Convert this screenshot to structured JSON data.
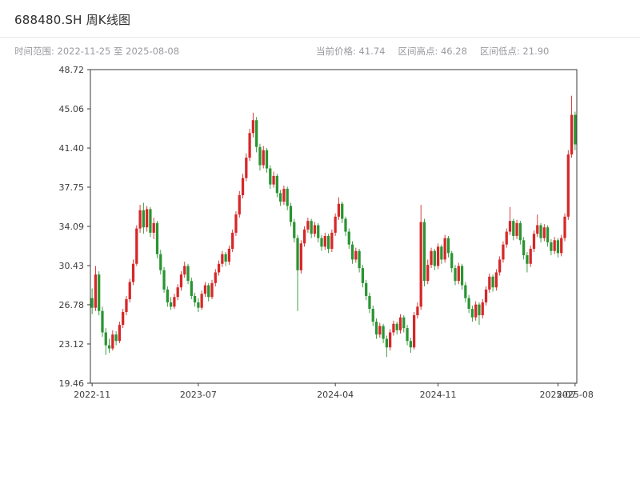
{
  "header": {
    "title": "688480.SH 周K线图",
    "time_range": "时间范围: 2022-11-25 至 2025-08-08",
    "current_price": "当前价格: 41.74",
    "range_high": "区间高点: 46.28",
    "range_low": "区间低点: 21.90"
  },
  "chart_data": {
    "type": "candlestick",
    "title": "688480.SH 周K线图",
    "interval": "weekly",
    "start_date": "2022-11-25",
    "end_date": "2025-08-08",
    "current_price": 41.74,
    "range_high": 46.28,
    "range_low": 21.9,
    "ylim": [
      19.46,
      48.72
    ],
    "y_ticks": [
      19.46,
      23.12,
      26.78,
      30.43,
      34.09,
      37.75,
      41.4,
      45.06,
      48.72
    ],
    "x_ticks": [
      {
        "label": "2022-11",
        "index": 0
      },
      {
        "label": "2023-07",
        "index": 31
      },
      {
        "label": "2024-04",
        "index": 71
      },
      {
        "label": "2024-11",
        "index": 101
      },
      {
        "label": "2025-07",
        "index": 136
      },
      {
        "label": "2025-08",
        "index": 141
      }
    ],
    "up_color": "#d62728",
    "down_color": "#2a9432",
    "grid": false,
    "legend": "none",
    "candles": [
      [
        27.4,
        28.3,
        25.9,
        26.5
      ],
      [
        26.5,
        30.4,
        26.2,
        29.6
      ],
      [
        29.6,
        29.9,
        25.8,
        26.2
      ],
      [
        26.2,
        26.6,
        23.8,
        24.2
      ],
      [
        24.2,
        24.6,
        22.1,
        23.0
      ],
      [
        23.0,
        23.6,
        22.3,
        22.7
      ],
      [
        22.7,
        24.4,
        22.5,
        24.0
      ],
      [
        24.0,
        24.3,
        23.0,
        23.4
      ],
      [
        23.4,
        25.2,
        23.2,
        24.9
      ],
      [
        24.9,
        26.4,
        24.6,
        26.1
      ],
      [
        26.1,
        27.6,
        25.8,
        27.3
      ],
      [
        27.3,
        29.2,
        27.0,
        28.9
      ],
      [
        28.9,
        31.0,
        28.6,
        30.6
      ],
      [
        30.6,
        34.2,
        30.4,
        33.9
      ],
      [
        33.9,
        36.1,
        33.5,
        35.6
      ],
      [
        35.6,
        36.3,
        33.4,
        34.0
      ],
      [
        34.0,
        36.0,
        33.6,
        35.7
      ],
      [
        35.7,
        35.9,
        33.1,
        33.5
      ],
      [
        33.5,
        34.9,
        32.9,
        34.4
      ],
      [
        34.4,
        34.6,
        31.1,
        31.5
      ],
      [
        31.5,
        31.9,
        29.6,
        30.0
      ],
      [
        30.0,
        30.3,
        27.9,
        28.2
      ],
      [
        28.2,
        28.5,
        26.6,
        27.0
      ],
      [
        27.0,
        27.5,
        26.3,
        26.6
      ],
      [
        26.6,
        27.8,
        26.4,
        27.5
      ],
      [
        27.5,
        28.7,
        27.2,
        28.4
      ],
      [
        28.4,
        29.9,
        28.1,
        29.6
      ],
      [
        29.6,
        30.8,
        29.3,
        30.4
      ],
      [
        30.4,
        30.6,
        28.7,
        29.0
      ],
      [
        29.0,
        29.3,
        27.3,
        27.6
      ],
      [
        27.6,
        27.9,
        26.6,
        27.0
      ],
      [
        27.0,
        27.4,
        26.1,
        26.5
      ],
      [
        26.5,
        28.1,
        26.3,
        27.8
      ],
      [
        27.8,
        28.9,
        27.5,
        28.6
      ],
      [
        28.6,
        28.8,
        27.1,
        27.5
      ],
      [
        27.5,
        29.1,
        27.3,
        28.8
      ],
      [
        28.8,
        30.1,
        28.5,
        29.8
      ],
      [
        29.8,
        30.9,
        29.5,
        30.6
      ],
      [
        30.6,
        31.8,
        30.3,
        31.5
      ],
      [
        31.5,
        31.7,
        30.4,
        30.8
      ],
      [
        30.8,
        32.3,
        30.5,
        32.0
      ],
      [
        32.0,
        33.8,
        31.7,
        33.5
      ],
      [
        33.5,
        35.5,
        33.2,
        35.2
      ],
      [
        35.2,
        37.4,
        34.9,
        37.0
      ],
      [
        37.0,
        39.0,
        36.7,
        38.6
      ],
      [
        38.6,
        40.9,
        38.3,
        40.5
      ],
      [
        40.5,
        43.2,
        40.2,
        42.8
      ],
      [
        42.8,
        44.7,
        42.4,
        44.0
      ],
      [
        44.0,
        44.3,
        41.0,
        41.5
      ],
      [
        41.5,
        41.8,
        39.3,
        39.8
      ],
      [
        39.8,
        41.6,
        39.5,
        41.2
      ],
      [
        41.2,
        41.4,
        39.1,
        39.5
      ],
      [
        39.5,
        39.8,
        37.6,
        38.0
      ],
      [
        38.0,
        39.2,
        37.7,
        38.8
      ],
      [
        38.8,
        39.0,
        36.8,
        37.2
      ],
      [
        37.2,
        37.5,
        36.0,
        36.4
      ],
      [
        36.4,
        37.9,
        36.1,
        37.6
      ],
      [
        37.6,
        37.8,
        35.6,
        36.0
      ],
      [
        36.0,
        36.3,
        34.1,
        34.5
      ],
      [
        34.5,
        34.8,
        32.6,
        33.0
      ],
      [
        33.0,
        33.3,
        26.2,
        30.0
      ],
      [
        30.0,
        32.8,
        29.7,
        32.5
      ],
      [
        32.5,
        34.1,
        32.2,
        33.8
      ],
      [
        33.8,
        34.9,
        33.5,
        34.6
      ],
      [
        34.6,
        34.8,
        33.0,
        33.4
      ],
      [
        33.4,
        34.5,
        33.1,
        34.2
      ],
      [
        34.2,
        34.4,
        32.6,
        33.0
      ],
      [
        33.0,
        33.3,
        31.8,
        32.2
      ],
      [
        32.2,
        33.5,
        31.9,
        33.2
      ],
      [
        33.2,
        33.4,
        31.6,
        32.0
      ],
      [
        32.0,
        33.8,
        31.7,
        33.5
      ],
      [
        33.5,
        35.3,
        33.2,
        35.0
      ],
      [
        35.0,
        36.8,
        34.7,
        36.2
      ],
      [
        36.2,
        36.4,
        34.4,
        34.8
      ],
      [
        34.8,
        35.0,
        33.2,
        33.6
      ],
      [
        33.6,
        33.9,
        32.0,
        32.4
      ],
      [
        32.4,
        32.7,
        30.6,
        31.0
      ],
      [
        31.0,
        32.1,
        30.7,
        31.8
      ],
      [
        31.8,
        32.0,
        29.8,
        30.2
      ],
      [
        30.2,
        30.5,
        28.4,
        28.8
      ],
      [
        28.8,
        29.1,
        27.2,
        27.6
      ],
      [
        27.6,
        27.9,
        26.0,
        26.4
      ],
      [
        26.4,
        26.7,
        24.8,
        25.2
      ],
      [
        25.2,
        25.5,
        23.6,
        24.0
      ],
      [
        24.0,
        25.1,
        23.7,
        24.8
      ],
      [
        24.8,
        25.0,
        23.2,
        23.6
      ],
      [
        23.6,
        23.9,
        21.9,
        22.8
      ],
      [
        22.8,
        24.5,
        22.5,
        24.2
      ],
      [
        24.2,
        25.3,
        23.9,
        25.0
      ],
      [
        25.0,
        25.2,
        24.0,
        24.4
      ],
      [
        24.4,
        25.9,
        24.1,
        25.6
      ],
      [
        25.6,
        25.8,
        24.2,
        24.6
      ],
      [
        24.6,
        24.9,
        23.0,
        23.4
      ],
      [
        23.4,
        23.7,
        22.3,
        22.8
      ],
      [
        22.8,
        26.1,
        22.6,
        25.8
      ],
      [
        25.8,
        27.0,
        25.5,
        26.6
      ],
      [
        26.6,
        36.1,
        26.3,
        34.5
      ],
      [
        34.5,
        34.8,
        28.5,
        29.0
      ],
      [
        29.0,
        31.0,
        28.7,
        30.5
      ],
      [
        30.5,
        32.1,
        30.2,
        31.8
      ],
      [
        31.8,
        32.0,
        30.0,
        30.4
      ],
      [
        30.4,
        32.5,
        30.1,
        32.2
      ],
      [
        32.2,
        32.4,
        30.6,
        31.0
      ],
      [
        31.0,
        33.3,
        30.7,
        33.0
      ],
      [
        33.0,
        33.2,
        31.2,
        31.6
      ],
      [
        31.6,
        31.8,
        29.8,
        30.2
      ],
      [
        30.2,
        30.5,
        28.6,
        29.0
      ],
      [
        29.0,
        30.7,
        28.7,
        30.4
      ],
      [
        30.4,
        30.6,
        28.2,
        28.6
      ],
      [
        28.6,
        28.9,
        27.0,
        27.4
      ],
      [
        27.4,
        27.7,
        26.0,
        26.4
      ],
      [
        26.4,
        26.7,
        25.2,
        25.6
      ],
      [
        25.6,
        27.1,
        25.3,
        26.8
      ],
      [
        26.8,
        27.0,
        24.9,
        25.8
      ],
      [
        25.8,
        27.3,
        25.5,
        27.0
      ],
      [
        27.0,
        28.5,
        26.7,
        28.2
      ],
      [
        28.2,
        29.7,
        27.9,
        29.4
      ],
      [
        29.4,
        29.6,
        28.0,
        28.4
      ],
      [
        28.4,
        30.1,
        28.1,
        29.8
      ],
      [
        29.8,
        31.3,
        29.5,
        31.0
      ],
      [
        31.0,
        32.7,
        30.7,
        32.4
      ],
      [
        32.4,
        33.9,
        32.1,
        33.6
      ],
      [
        33.6,
        35.9,
        33.3,
        34.6
      ],
      [
        34.6,
        34.8,
        32.8,
        33.2
      ],
      [
        33.2,
        34.7,
        32.9,
        34.4
      ],
      [
        34.4,
        34.6,
        32.4,
        32.8
      ],
      [
        32.8,
        33.1,
        31.0,
        31.4
      ],
      [
        31.4,
        31.7,
        29.8,
        30.6
      ],
      [
        30.6,
        32.3,
        30.3,
        32.0
      ],
      [
        32.0,
        33.7,
        31.7,
        33.4
      ],
      [
        33.4,
        35.2,
        33.1,
        34.2
      ],
      [
        34.2,
        34.4,
        32.6,
        33.0
      ],
      [
        33.0,
        34.3,
        32.7,
        34.0
      ],
      [
        34.0,
        34.2,
        32.2,
        32.6
      ],
      [
        32.6,
        32.9,
        31.4,
        31.8
      ],
      [
        31.8,
        33.1,
        31.5,
        32.8
      ],
      [
        32.8,
        33.0,
        31.2,
        31.6
      ],
      [
        31.6,
        33.3,
        31.3,
        33.0
      ],
      [
        33.0,
        35.3,
        32.7,
        35.0
      ],
      [
        35.0,
        41.2,
        34.7,
        40.8
      ],
      [
        40.8,
        46.28,
        40.5,
        44.5
      ],
      [
        44.5,
        44.8,
        41.2,
        41.74
      ]
    ]
  }
}
